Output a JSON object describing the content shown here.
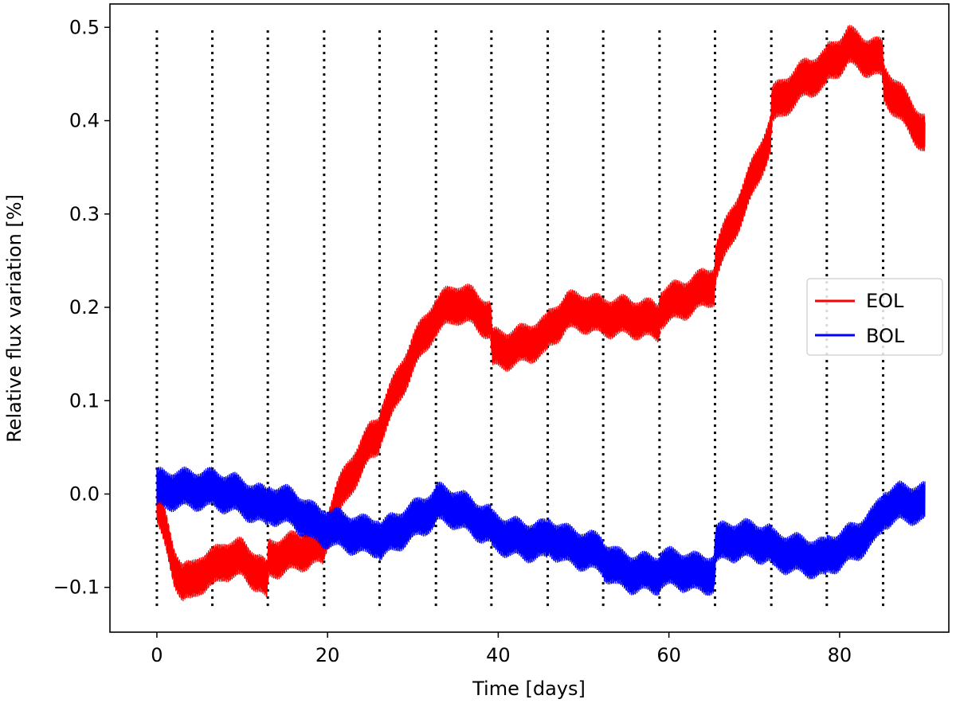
{
  "chart_data": {
    "type": "line",
    "xlabel": "Time [days]",
    "ylabel": "Relative flux variation [%]",
    "xlim": [
      -5.5,
      92.8
    ],
    "ylim": [
      -0.148,
      0.525
    ],
    "xticks": [
      0,
      20,
      40,
      60,
      80
    ],
    "xtick_labels": [
      "0",
      "20",
      "40",
      "60",
      "80"
    ],
    "yticks": [
      -0.1,
      0.0,
      0.1,
      0.2,
      0.3,
      0.4,
      0.5
    ],
    "ytick_labels": [
      "−0.1",
      "0.0",
      "0.1",
      "0.2",
      "0.3",
      "0.4",
      "0.5"
    ],
    "grid": false,
    "legend_position": "center-right",
    "vlines": {
      "style": "dotted",
      "color": "#000000",
      "x": [
        0,
        6.5,
        13,
        19.6,
        26.1,
        32.7,
        39.2,
        45.8,
        52.3,
        58.9,
        65.4,
        72,
        78.5,
        85.1
      ],
      "ymin": -0.12,
      "ymax": 0.5
    },
    "series": [
      {
        "name": "EOL",
        "color": "#ff0000",
        "noise_amplitude": 0.02,
        "x": [
          0,
          1,
          2,
          3,
          4,
          5,
          6.4,
          6.6,
          8,
          10,
          12,
          12.9,
          13.1,
          15,
          17,
          19.5,
          19.7,
          21,
          23,
          25,
          26,
          26.2,
          28,
          30,
          32.6,
          32.8,
          34,
          35,
          37,
          39.1,
          39.3,
          41,
          43,
          45.7,
          45.9,
          48,
          50,
          52.2,
          52.4,
          55,
          58.8,
          59,
          62,
          65.3,
          65.5,
          67,
          69,
          71.9,
          72.1,
          74,
          76,
          78.4,
          78.6,
          80,
          81,
          83,
          85,
          85.2,
          87,
          89,
          90
        ],
        "y": [
          -0.01,
          -0.04,
          -0.075,
          -0.095,
          -0.095,
          -0.085,
          -0.08,
          -0.08,
          -0.07,
          -0.07,
          -0.085,
          -0.095,
          -0.07,
          -0.065,
          -0.06,
          -0.055,
          -0.045,
          -0.01,
          0.025,
          0.055,
          0.065,
          0.075,
          0.11,
          0.15,
          0.19,
          0.19,
          0.2,
          0.205,
          0.2,
          0.185,
          0.155,
          0.155,
          0.16,
          0.17,
          0.175,
          0.195,
          0.195,
          0.19,
          0.19,
          0.19,
          0.185,
          0.2,
          0.21,
          0.225,
          0.25,
          0.28,
          0.32,
          0.385,
          0.415,
          0.43,
          0.445,
          0.455,
          0.46,
          0.47,
          0.48,
          0.47,
          0.465,
          0.44,
          0.42,
          0.395,
          0.385
        ]
      },
      {
        "name": "BOL",
        "color": "#0000ff",
        "noise_amplitude": 0.02,
        "x": [
          0,
          2,
          4,
          6.4,
          6.6,
          9,
          12.9,
          13.1,
          16,
          18,
          19.5,
          19.7,
          22,
          24,
          26,
          26.2,
          29,
          32.6,
          32.8,
          35,
          37,
          39.1,
          39.3,
          41,
          43,
          45.7,
          45.9,
          48,
          50,
          52.2,
          52.4,
          54,
          56,
          58.8,
          59,
          61,
          63,
          65.3,
          65.5,
          67,
          70,
          71.9,
          72.1,
          75,
          78.4,
          78.6,
          80,
          82,
          84,
          85,
          85.2,
          87,
          90
        ],
        "y": [
          0.005,
          0.005,
          0.005,
          0.005,
          0.005,
          0.0,
          -0.015,
          -0.01,
          -0.015,
          -0.03,
          -0.035,
          -0.035,
          -0.04,
          -0.045,
          -0.045,
          -0.05,
          -0.035,
          -0.015,
          -0.01,
          -0.015,
          -0.025,
          -0.035,
          -0.04,
          -0.045,
          -0.05,
          -0.05,
          -0.045,
          -0.055,
          -0.06,
          -0.065,
          -0.07,
          -0.08,
          -0.085,
          -0.085,
          -0.08,
          -0.08,
          -0.085,
          -0.085,
          -0.055,
          -0.05,
          -0.05,
          -0.055,
          -0.06,
          -0.065,
          -0.07,
          -0.065,
          -0.06,
          -0.05,
          -0.035,
          -0.02,
          -0.015,
          -0.01,
          -0.01
        ]
      }
    ]
  }
}
